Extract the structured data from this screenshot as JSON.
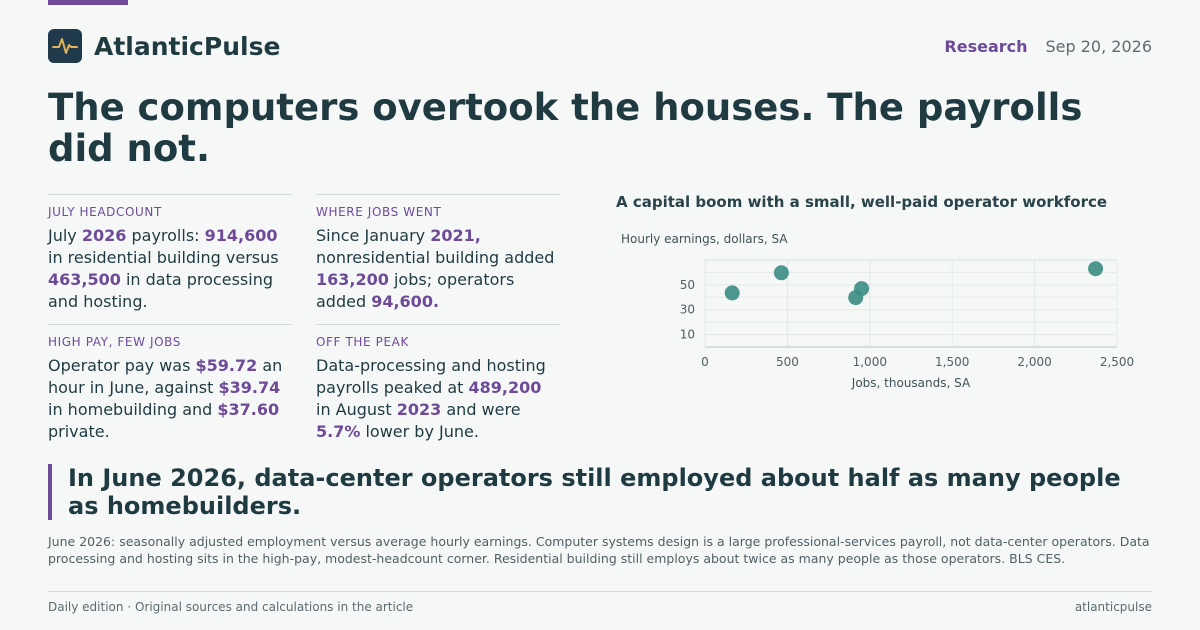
{
  "colors": {
    "accent": "#6e4a98",
    "point": "#3e8e84",
    "ink": "#1f3a40"
  },
  "brand": {
    "name": "AtlanticPulse",
    "logo_icon": "pulse-icon"
  },
  "header": {
    "section": "Research",
    "date": "Sep 20, 2026"
  },
  "headline": "The computers overtook the houses. The payrolls did not.",
  "stats": [
    {
      "label": "JULY HEADCOUNT",
      "parts": [
        {
          "t": "July "
        },
        {
          "t": "2026",
          "h": true
        },
        {
          "t": " payrolls: "
        },
        {
          "t": "914,600",
          "h": true
        },
        {
          "t": " in residential building versus "
        },
        {
          "t": "463,500",
          "h": true
        },
        {
          "t": " in data processing and hosting."
        }
      ]
    },
    {
      "label": "WHERE JOBS WENT",
      "parts": [
        {
          "t": "Since January "
        },
        {
          "t": "2021,",
          "h": true
        },
        {
          "t": " nonresidential building added "
        },
        {
          "t": "163,200",
          "h": true
        },
        {
          "t": " jobs; operators added "
        },
        {
          "t": "94,600.",
          "h": true
        }
      ]
    },
    {
      "label": "HIGH PAY, FEW JOBS",
      "parts": [
        {
          "t": "Operator pay was "
        },
        {
          "t": "$59.72",
          "h": true
        },
        {
          "t": " an hour in June, against "
        },
        {
          "t": "$39.74",
          "h": true
        },
        {
          "t": " in homebuilding and "
        },
        {
          "t": "$37.60",
          "h": true
        },
        {
          "t": " private."
        }
      ]
    },
    {
      "label": "OFF THE PEAK",
      "parts": [
        {
          "t": "Data-processing and hosting payrolls peaked at "
        },
        {
          "t": "489,200",
          "h": true
        },
        {
          "t": " in August "
        },
        {
          "t": "2023",
          "h": true
        },
        {
          "t": " and were "
        },
        {
          "t": "5.7%",
          "h": true
        },
        {
          "t": " lower by June."
        }
      ]
    }
  ],
  "chart_data": {
    "type": "scatter",
    "title": "A capital boom with a small, well-paid operator workforce",
    "xlabel": "Jobs, thousands, SA",
    "ylabel": "Hourly earnings, dollars, SA",
    "xlim": [
      0,
      2500
    ],
    "ylim": [
      0,
      70
    ],
    "xticks": [
      0,
      500,
      1000,
      1500,
      2000,
      2500
    ],
    "xtick_labels": [
      "0",
      "500",
      "1,000",
      "1,500",
      "2,000",
      "2,500"
    ],
    "yticks": [
      10,
      30,
      50
    ],
    "ytick_labels": [
      "10",
      "30",
      "50"
    ],
    "grid": true,
    "points": [
      {
        "x": 165,
        "y": 43.5
      },
      {
        "x": 463.5,
        "y": 59.72
      },
      {
        "x": 914.6,
        "y": 39.74
      },
      {
        "x": 950,
        "y": 47
      },
      {
        "x": 2370,
        "y": 63
      }
    ]
  },
  "pull_quote": "In June 2026, data-center operators still employed about half as many people as homebuilders.",
  "note": "June 2026: seasonally adjusted employment versus average hourly earnings. Computer systems design is a large professional-services payroll, not data-center operators. Data processing and hosting sits in the high-pay, modest-headcount corner. Residential building still employs about twice as many people as those operators. BLS CES.",
  "footer": {
    "left": "Daily edition · Original sources and calculations in the article",
    "right": "atlanticpulse"
  }
}
